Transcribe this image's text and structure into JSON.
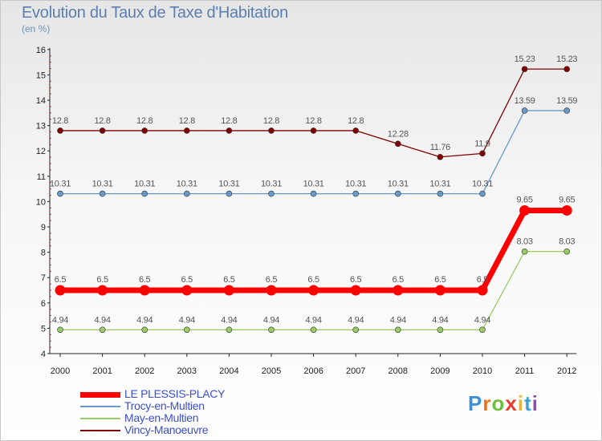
{
  "chart_data": {
    "type": "line",
    "title": "Evolution du Taux de Taxe d'Habitation",
    "subtitle": "(en %)",
    "x": [
      "2000",
      "2001",
      "2002",
      "2003",
      "2004",
      "2005",
      "2006",
      "2007",
      "2008",
      "2009",
      "2010",
      "2011",
      "2012"
    ],
    "ylim": [
      4,
      16
    ],
    "yticks": [
      "4",
      "5",
      "6",
      "7",
      "8",
      "9",
      "10",
      "11",
      "12",
      "13",
      "14",
      "15",
      "16"
    ],
    "grid": false,
    "legend_position": "bottom-left",
    "series": [
      {
        "name": "LE PLESSIS-PLACY",
        "color": "#ff0000",
        "values": [
          6.5,
          6.5,
          6.5,
          6.5,
          6.5,
          6.5,
          6.5,
          6.5,
          6.5,
          6.5,
          6.5,
          9.65,
          9.65
        ],
        "labels": [
          "6.5",
          "6.5",
          "6.5",
          "6.5",
          "6.5",
          "6.5",
          "6.5",
          "6.5",
          "6.5",
          "6.5",
          "6.5",
          "9.65",
          "9.65"
        ]
      },
      {
        "name": "Trocy-en-Multien",
        "color": "#6699cc",
        "values": [
          10.31,
          10.31,
          10.31,
          10.31,
          10.31,
          10.31,
          10.31,
          10.31,
          10.31,
          10.31,
          10.31,
          13.59,
          13.59
        ],
        "labels": [
          "10.31",
          "10.31",
          "10.31",
          "10.31",
          "10.31",
          "10.31",
          "10.31",
          "10.31",
          "10.31",
          "10.31",
          "10.31",
          "13.59",
          "13.59"
        ]
      },
      {
        "name": "May-en-Multien",
        "color": "#99cc66",
        "values": [
          4.94,
          4.94,
          4.94,
          4.94,
          4.94,
          4.94,
          4.94,
          4.94,
          4.94,
          4.94,
          4.94,
          8.03,
          8.03
        ],
        "labels": [
          "4.94",
          "4.94",
          "4.94",
          "4.94",
          "4.94",
          "4.94",
          "4.94",
          "4.94",
          "4.94",
          "4.94",
          "4.94",
          "8.03",
          "8.03"
        ]
      },
      {
        "name": "Vincy-Manoeuvre",
        "color": "#800000",
        "values": [
          12.8,
          12.8,
          12.8,
          12.8,
          12.8,
          12.8,
          12.8,
          12.8,
          12.28,
          11.76,
          11.9,
          15.23,
          15.23
        ],
        "labels": [
          "12.8",
          "12.8",
          "12.8",
          "12.8",
          "12.8",
          "12.8",
          "12.8",
          "12.8",
          "12.28",
          "11.76",
          "11.9",
          "15.23",
          "15.23"
        ]
      }
    ]
  },
  "brand": {
    "letters": [
      "P",
      "r",
      "o",
      "x",
      "i",
      "t",
      "i"
    ],
    "colors": [
      "#3f8fd6",
      "#e8731c",
      "#6cbf3c",
      "#e83c2c",
      "#f0b41c",
      "#3fa0d6",
      "#8c4fb0"
    ]
  }
}
